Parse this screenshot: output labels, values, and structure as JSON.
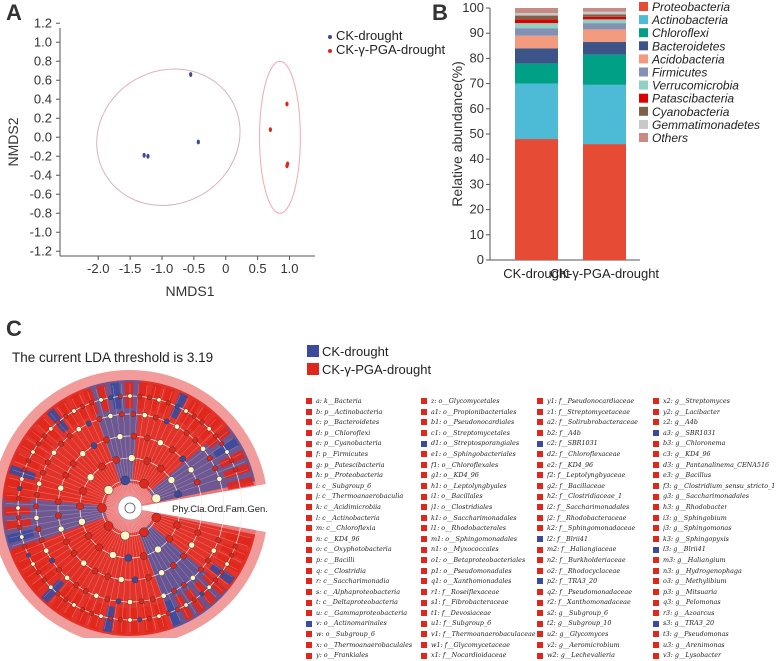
{
  "panel_labels": {
    "a": "A",
    "b": "B",
    "c": "C"
  },
  "colors": {
    "ck": "#3b4a9c",
    "pga": "#e0271c"
  },
  "chart_data": [
    {
      "type": "scatter",
      "xlabel": "NMDS1",
      "ylabel": "NMDS2",
      "xlim": [
        -2.6,
        1.4
      ],
      "ylim": [
        -1.25,
        1.15
      ],
      "xticks": [
        "-2.0",
        "-1.5",
        "-1.0",
        "-0.5",
        "0",
        "0.5",
        "1.0"
      ],
      "xtick_values": [
        -2.0,
        -1.5,
        -1.0,
        -0.5,
        0,
        0.5,
        1.0
      ],
      "yticks": [
        "1.2",
        "1.0",
        "0.8",
        "0.6",
        "0.4",
        "0.2",
        "0.0",
        "-0.2",
        "-0.4",
        "-0.6",
        "-0.8",
        "-1.0",
        "-1.2"
      ],
      "ytick_values": [
        1.2,
        1.0,
        0.8,
        0.6,
        0.4,
        0.2,
        0.0,
        -0.2,
        -0.4,
        -0.6,
        -0.8,
        -1.0,
        -1.2
      ],
      "legend_position": "top-right",
      "series": [
        {
          "name": "CK-drought",
          "color": "#3b4a9c",
          "points": [
            [
              -0.55,
              0.66
            ],
            [
              -1.28,
              -0.19
            ],
            [
              -1.22,
              -0.2
            ],
            [
              -0.43,
              -0.05
            ]
          ],
          "ellipse": {
            "cx": -0.9,
            "cy": 0.0,
            "rx": 1.15,
            "ry": 0.7,
            "angle": 30
          }
        },
        {
          "name": "CK-γ-PGA-drought",
          "color": "#e0271c",
          "points": [
            [
              0.96,
              0.35
            ],
            [
              0.7,
              0.08
            ],
            [
              0.97,
              -0.28
            ],
            [
              0.96,
              -0.3
            ]
          ],
          "ellipse": {
            "cx": 0.85,
            "cy": 0.0,
            "rx": 0.32,
            "ry": 0.8,
            "angle": 0
          }
        }
      ]
    },
    {
      "type": "bar",
      "stacked": true,
      "ylabel": "Relative abundance(%)",
      "ylim": [
        0,
        100
      ],
      "yticks": [
        "0",
        "10",
        "20",
        "30",
        "40",
        "50",
        "60",
        "70",
        "80",
        "90",
        "100"
      ],
      "categories": [
        "CK-drought",
        "CK-γ-PGA-drought"
      ],
      "series": [
        {
          "name": "Proteobacteria",
          "color": "#e64b35",
          "values": [
            48,
            46
          ]
        },
        {
          "name": "Actinobacteria",
          "color": "#4dbbd5",
          "values": [
            22,
            23.5
          ]
        },
        {
          "name": "Chloroflexi",
          "color": "#00a087",
          "values": [
            8,
            12
          ]
        },
        {
          "name": "Bacteroidetes",
          "color": "#3c5488",
          "values": [
            6,
            5
          ]
        },
        {
          "name": "Acidobacteria",
          "color": "#f39b7f",
          "values": [
            5,
            5
          ]
        },
        {
          "name": "Firmicutes",
          "color": "#8491b4",
          "values": [
            3,
            2.5
          ]
        },
        {
          "name": "Verrucomicrobia",
          "color": "#91d1c2",
          "values": [
            2,
            1.5
          ]
        },
        {
          "name": "Patascibacteria",
          "color": "#dc0000",
          "values": [
            1.5,
            1
          ]
        },
        {
          "name": "Cyanobacteria",
          "color": "#7e6148",
          "values": [
            1.5,
            1
          ]
        },
        {
          "name": "Gemmatimonadetes",
          "color": "#c8c8c8",
          "values": [
            1,
            1
          ]
        },
        {
          "name": "Others",
          "color": "#c88b84",
          "values": [
            2,
            1.5
          ]
        }
      ]
    }
  ],
  "lefse": {
    "threshold_text": "The current LDA threshold is 3.19",
    "levels_label": "Phy.Cla.Ord.Fam.Gen.",
    "legend": [
      {
        "name": "CK-drought",
        "color": "#3b4a9c"
      },
      {
        "name": "CK-γ-PGA-drought",
        "color": "#e0271c"
      }
    ],
    "taxa_columns": [
      [
        {
          "label": "a: k__Bacteria",
          "group": "pga"
        },
        {
          "label": "b: p__Actinobacteria",
          "group": "pga"
        },
        {
          "label": "c: p__Bacteroidetes",
          "group": "pga"
        },
        {
          "label": "d: p__Chloroflexi",
          "group": "pga"
        },
        {
          "label": "e: p__Cyanobacteria",
          "group": "pga"
        },
        {
          "label": "f: p__Firmicutes",
          "group": "pga"
        },
        {
          "label": "g: p__Patescibacteria",
          "group": "pga"
        },
        {
          "label": "h: p__Proteobacteria",
          "group": "pga"
        },
        {
          "label": "i: c__Subgroup_6",
          "group": "pga"
        },
        {
          "label": "j: c__Thermoanaerobaculia",
          "group": "pga"
        },
        {
          "label": "k: c__Acidimicrobiia",
          "group": "pga"
        },
        {
          "label": "l: c__Actinobacteria",
          "group": "pga"
        },
        {
          "label": "m: c__Chloroflexia",
          "group": "pga"
        },
        {
          "label": "n: c__KD4_96",
          "group": "pga"
        },
        {
          "label": "o: c__Oxyphotobacteria",
          "group": "pga"
        },
        {
          "label": "p: c__Bacilli",
          "group": "pga"
        },
        {
          "label": "q: c__Clostridia",
          "group": "pga"
        },
        {
          "label": "r: c__Saccharimonadia",
          "group": "pga"
        },
        {
          "label": "s: c__Alphaproteobacteria",
          "group": "pga"
        },
        {
          "label": "t: c__Deltaproteobacteria",
          "group": "pga"
        },
        {
          "label": "u: c__Gammaproteobacteria",
          "group": "pga"
        },
        {
          "label": "v: o__Actinomarinales",
          "group": "ck"
        },
        {
          "label": "w: o__Subgroup_6",
          "group": "pga"
        },
        {
          "label": "x: o__Thermoanaerobaculales",
          "group": "pga"
        },
        {
          "label": "y: o__Frankiales",
          "group": "pga"
        }
      ],
      [
        {
          "label": "z: o__Glycomycetales",
          "group": "pga"
        },
        {
          "label": "a1: o__Propionibacteriales",
          "group": "pga"
        },
        {
          "label": "b1: o__Pseudonocardiales",
          "group": "pga"
        },
        {
          "label": "c1: o__Streptomycetales",
          "group": "pga"
        },
        {
          "label": "d1: o__Streptosporangiales",
          "group": "ck"
        },
        {
          "label": "e1: o__Sphingobacteriales",
          "group": "pga"
        },
        {
          "label": "f1: o__Chloroflexales",
          "group": "pga"
        },
        {
          "label": "g1: o__KD4_96",
          "group": "pga"
        },
        {
          "label": "h1: o__Leptolyngbyales",
          "group": "pga"
        },
        {
          "label": "i1: o__Bacillales",
          "group": "pga"
        },
        {
          "label": "j1: o__Clostridiales",
          "group": "pga"
        },
        {
          "label": "k1: o__Saccharimonadales",
          "group": "pga"
        },
        {
          "label": "l1: o__Rhodobacterales",
          "group": "pga"
        },
        {
          "label": "m1: o__Sphingomonadales",
          "group": "pga"
        },
        {
          "label": "n1: o__Myxococcales",
          "group": "pga"
        },
        {
          "label": "o1: o__Betaproteobacteriales",
          "group": "pga"
        },
        {
          "label": "p1: o__Pseudomonadales",
          "group": "pga"
        },
        {
          "label": "q1: o__Xanthomonadales",
          "group": "pga"
        },
        {
          "label": "r1: f__Roseiflexaceae",
          "group": "pga"
        },
        {
          "label": "s1: f__Fibrobacteraceae",
          "group": "pga"
        },
        {
          "label": "t1: f__Devosiaceae",
          "group": "pga"
        },
        {
          "label": "u1: f__Subgroup_6",
          "group": "pga"
        },
        {
          "label": "v1: f__Thermoanaerobaculaceae",
          "group": "pga"
        },
        {
          "label": "w1: f__Glycomycetaceae",
          "group": "pga"
        },
        {
          "label": "x1: f__Nocardioidaceae",
          "group": "pga"
        }
      ],
      [
        {
          "label": "y1: f__Pseudonocardiaceae",
          "group": "pga"
        },
        {
          "label": "z1: f__Streptomycetaceae",
          "group": "pga"
        },
        {
          "label": "a2: f__Solirubrobacteraceae",
          "group": "pga"
        },
        {
          "label": "b2: f__A4b",
          "group": "pga"
        },
        {
          "label": "c2: f__SBR1031",
          "group": "ck"
        },
        {
          "label": "d2: f__Chloroflexaceae",
          "group": "pga"
        },
        {
          "label": "e2: f__KD4_96",
          "group": "pga"
        },
        {
          "label": "f2: f__Leptolyngbyaceae",
          "group": "pga"
        },
        {
          "label": "g2: f__Bacillaceae",
          "group": "pga"
        },
        {
          "label": "h2: f__Clostridiaceae_1",
          "group": "pga"
        },
        {
          "label": "i2: f__Saccharimonadales",
          "group": "pga"
        },
        {
          "label": "j2: f__Rhodobacteraceae",
          "group": "pga"
        },
        {
          "label": "k2: f__Sphingomonadaceae",
          "group": "pga"
        },
        {
          "label": "l2: f__Blrii41",
          "group": "ck"
        },
        {
          "label": "m2: f__Haliangiaceae",
          "group": "pga"
        },
        {
          "label": "n2: f__Burkholderiaceae",
          "group": "pga"
        },
        {
          "label": "o2: f__Rhodocyclaceae",
          "group": "pga"
        },
        {
          "label": "p2: f__TRA3_20",
          "group": "ck"
        },
        {
          "label": "q2: f__Pseudomonadaceae",
          "group": "pga"
        },
        {
          "label": "r2: f__Xanthomonadaceae",
          "group": "pga"
        },
        {
          "label": "s2: g__Subgroup_6",
          "group": "pga"
        },
        {
          "label": "t2: g__Subgroup_10",
          "group": "pga"
        },
        {
          "label": "u2: g__Glycomyces",
          "group": "pga"
        },
        {
          "label": "v2: g__Aeromicrobium",
          "group": "pga"
        },
        {
          "label": "w2: g__Lechevalieria",
          "group": "pga"
        }
      ],
      [
        {
          "label": "x2: g__Streptomyces",
          "group": "pga"
        },
        {
          "label": "y2: g__Lacibacter",
          "group": "pga"
        },
        {
          "label": "z2: g__A4b",
          "group": "pga"
        },
        {
          "label": "a3: g__SBR1031",
          "group": "ck"
        },
        {
          "label": "b3: g__Chloronema",
          "group": "pga"
        },
        {
          "label": "c3: g__KD4_96",
          "group": "pga"
        },
        {
          "label": "d3: g__Pantanalinema_CENA516",
          "group": "pga"
        },
        {
          "label": "e3: g__Bacillus",
          "group": "pga"
        },
        {
          "label": "f3: g__Clostridium_sensu_stricto_1",
          "group": "pga"
        },
        {
          "label": "g3: g__Saccharimonadales",
          "group": "pga"
        },
        {
          "label": "h3: g__Rhodobacter",
          "group": "pga"
        },
        {
          "label": "i3: g__Sphingobium",
          "group": "pga"
        },
        {
          "label": "j3: g__Sphingomonas",
          "group": "pga"
        },
        {
          "label": "k3: g__Sphingopyxis",
          "group": "pga"
        },
        {
          "label": "l3: g__Blrii41",
          "group": "ck"
        },
        {
          "label": "m3: g__Haliangium",
          "group": "pga"
        },
        {
          "label": "n3: g__Hydrogenophaga",
          "group": "pga"
        },
        {
          "label": "o3: g__Methylibium",
          "group": "pga"
        },
        {
          "label": "p3: g__Mitsuaria",
          "group": "pga"
        },
        {
          "label": "q3: g__Pelomonas",
          "group": "pga"
        },
        {
          "label": "r3: g__Azoarcus",
          "group": "pga"
        },
        {
          "label": "s3: g__TRA3_20",
          "group": "ck"
        },
        {
          "label": "t3: g__Pseudomonas",
          "group": "pga"
        },
        {
          "label": "u3: g__Arenimonas",
          "group": "pga"
        },
        {
          "label": "v3: g__Lysobacter",
          "group": "pga"
        }
      ]
    ]
  }
}
